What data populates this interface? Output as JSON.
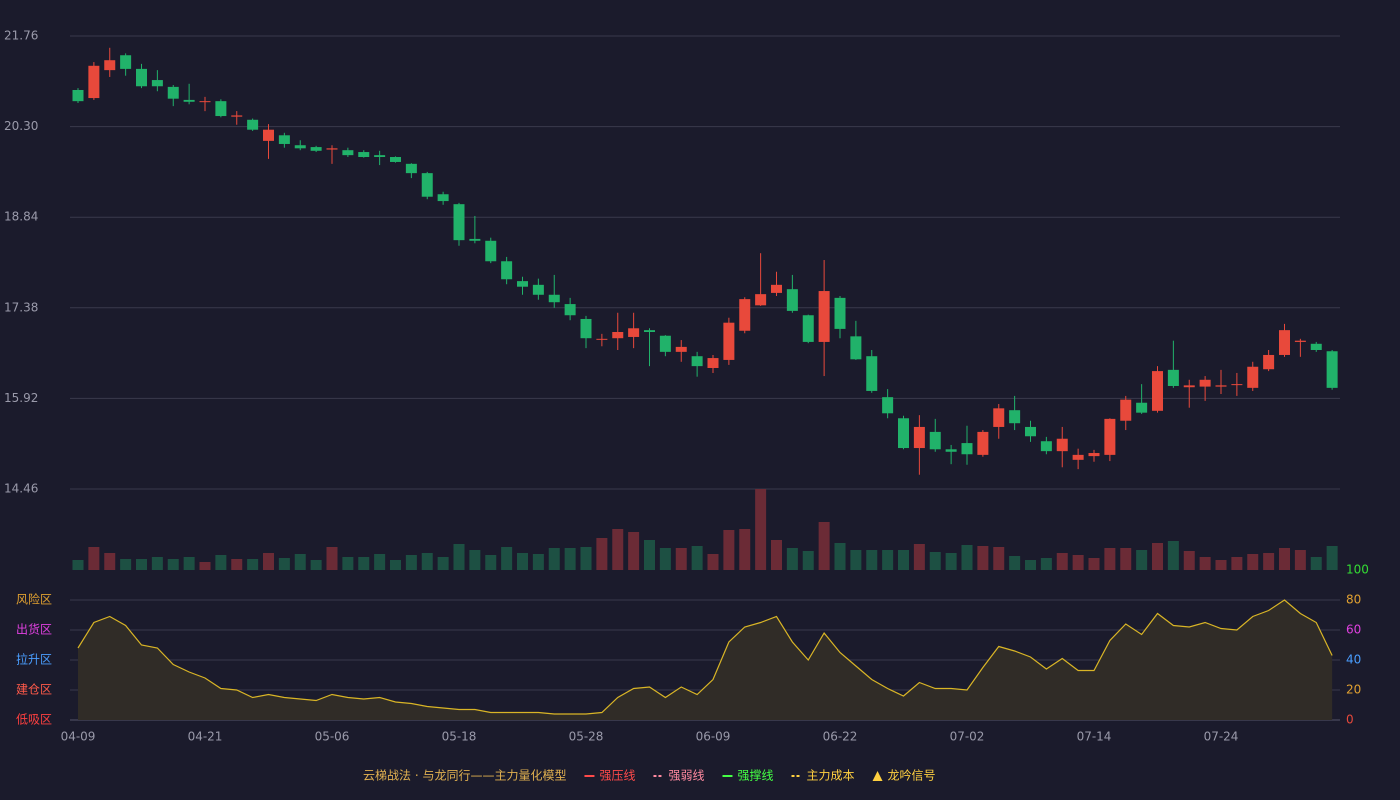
{
  "chart_data": {
    "type": "candlestick",
    "categories": [
      "04-09",
      null,
      null,
      null,
      null,
      null,
      null,
      null,
      "04-21",
      null,
      null,
      null,
      null,
      null,
      null,
      null,
      "05-06",
      null,
      null,
      null,
      null,
      null,
      null,
      null,
      "05-18",
      null,
      null,
      null,
      null,
      null,
      null,
      null,
      "05-28",
      null,
      null,
      null,
      null,
      null,
      null,
      null,
      "06-09",
      null,
      null,
      null,
      null,
      null,
      null,
      null,
      "06-22",
      null,
      null,
      null,
      null,
      null,
      null,
      null,
      "07-02",
      null,
      null,
      null,
      null,
      null,
      null,
      null,
      "07-14",
      null,
      null,
      null,
      null,
      null,
      null,
      null,
      "07-24",
      null,
      null,
      null,
      null,
      null,
      null,
      null
    ],
    "open": [
      20.89,
      20.76,
      21.21,
      21.45,
      21.23,
      21.05,
      20.94,
      20.73,
      20.7,
      20.71,
      20.46,
      20.41,
      20.07,
      20.16,
      20.0,
      19.97,
      19.93,
      19.92,
      19.89,
      19.84,
      19.81,
      19.7,
      19.55,
      19.21,
      19.05,
      18.49,
      18.46,
      18.13,
      17.81,
      17.75,
      17.59,
      17.44,
      17.2,
      16.87,
      16.89,
      16.91,
      17.02,
      16.93,
      16.67,
      16.6,
      16.41,
      16.54,
      17.01,
      17.42,
      17.62,
      17.68,
      17.26,
      16.83,
      17.54,
      16.92,
      16.6,
      15.94,
      15.6,
      15.12,
      15.38,
      15.1,
      15.2,
      15.01,
      15.46,
      15.73,
      15.46,
      15.23,
      15.07,
      14.93,
      14.99,
      15.01,
      15.56,
      15.85,
      15.72,
      16.38,
      16.1,
      16.11,
      16.11,
      16.14,
      16.09,
      16.39,
      16.62,
      16.83,
      16.8,
      16.68
    ],
    "close": [
      20.71,
      21.28,
      21.37,
      21.23,
      20.95,
      20.95,
      20.75,
      20.7,
      20.71,
      20.47,
      20.48,
      20.25,
      20.25,
      20.02,
      19.95,
      19.91,
      19.95,
      19.84,
      19.81,
      19.81,
      19.73,
      19.55,
      19.17,
      19.1,
      18.47,
      18.46,
      18.13,
      17.84,
      17.72,
      17.59,
      17.47,
      17.26,
      16.89,
      16.88,
      16.99,
      17.05,
      16.99,
      16.67,
      16.75,
      16.44,
      16.57,
      17.14,
      17.52,
      17.6,
      17.75,
      17.33,
      16.83,
      17.65,
      17.04,
      16.55,
      16.04,
      15.68,
      15.12,
      15.46,
      15.1,
      15.06,
      15.02,
      15.38,
      15.76,
      15.52,
      15.31,
      15.07,
      15.27,
      15.01,
      15.04,
      15.59,
      15.9,
      15.69,
      16.36,
      16.12,
      16.13,
      16.22,
      16.13,
      16.15,
      16.43,
      16.62,
      17.02,
      16.85,
      16.7,
      16.09
    ],
    "high": [
      20.92,
      21.34,
      21.57,
      21.48,
      21.31,
      21.21,
      20.97,
      20.99,
      20.78,
      20.74,
      20.55,
      20.43,
      20.34,
      20.2,
      20.08,
      19.99,
      20.0,
      19.96,
      19.92,
      19.91,
      19.82,
      19.71,
      19.57,
      19.25,
      19.07,
      18.86,
      18.51,
      18.2,
      17.88,
      17.85,
      17.91,
      17.54,
      17.25,
      16.96,
      17.3,
      17.3,
      17.05,
      16.94,
      16.86,
      16.67,
      16.62,
      17.22,
      17.55,
      18.26,
      17.96,
      17.91,
      17.27,
      18.15,
      17.57,
      17.17,
      16.7,
      16.07,
      15.64,
      15.65,
      15.59,
      15.17,
      15.48,
      15.41,
      15.83,
      15.96,
      15.56,
      15.3,
      15.46,
      15.11,
      15.09,
      15.6,
      15.96,
      16.15,
      16.44,
      16.85,
      16.22,
      16.28,
      16.38,
      16.33,
      16.51,
      16.7,
      17.12,
      16.88,
      16.83,
      16.7
    ],
    "low": [
      20.68,
      20.73,
      21.1,
      21.12,
      20.92,
      20.87,
      20.63,
      20.66,
      20.55,
      20.45,
      20.33,
      20.23,
      19.78,
      19.96,
      19.92,
      19.89,
      19.7,
      19.81,
      19.8,
      19.68,
      19.72,
      19.47,
      19.13,
      19.04,
      18.38,
      18.42,
      18.1,
      17.76,
      17.59,
      17.51,
      17.38,
      17.18,
      16.73,
      16.76,
      16.7,
      16.73,
      16.44,
      16.6,
      16.51,
      16.27,
      16.33,
      16.46,
      16.97,
      17.41,
      17.57,
      17.3,
      16.81,
      16.28,
      16.89,
      16.54,
      16.01,
      15.6,
      15.1,
      14.69,
      15.06,
      14.86,
      14.85,
      14.98,
      15.27,
      15.41,
      15.22,
      15.02,
      14.81,
      14.78,
      14.9,
      14.91,
      15.41,
      15.67,
      15.69,
      16.09,
      15.77,
      15.88,
      15.99,
      15.96,
      16.04,
      16.36,
      16.59,
      16.59,
      16.67,
      16.06
    ],
    "up_color": "#e8493b",
    "down_color": "#21b26a",
    "ylim": [
      14.46,
      21.76
    ],
    "yticks": [
      {
        "value": 14.46,
        "label": "14.46"
      },
      {
        "value": 15.92,
        "label": "15.92"
      },
      {
        "value": 17.38,
        "label": "17.38"
      },
      {
        "value": 18.84,
        "label": "18.84"
      },
      {
        "value": 20.3,
        "label": "20.30"
      },
      {
        "value": 21.76,
        "label": "21.76"
      }
    ],
    "grid": true,
    "volume": {
      "type": "bar",
      "up_color": "#6b2b36",
      "down_color": "#1d5043",
      "values": [
        10,
        23,
        17,
        11,
        11,
        13,
        11,
        13,
        8,
        15,
        11,
        11,
        17,
        12,
        16,
        10,
        23,
        13,
        13,
        16,
        10,
        15,
        17,
        13,
        26,
        20,
        15,
        23,
        17,
        16,
        22,
        22,
        23,
        32,
        41,
        38,
        30,
        22,
        22,
        24,
        16,
        40,
        41,
        81,
        30,
        22,
        19,
        48,
        27,
        20,
        20,
        20,
        20,
        26,
        18,
        17,
        25,
        24,
        23,
        14,
        10,
        12,
        17,
        15,
        12,
        22,
        22,
        20,
        27,
        29,
        19,
        13,
        10,
        13,
        16,
        17,
        22,
        20,
        13,
        24
      ]
    },
    "indicator": {
      "type": "area",
      "color": "#d9b526",
      "fill": "#302c27",
      "values": [
        48,
        65,
        69,
        63,
        50,
        48,
        37,
        32,
        28,
        21,
        20,
        15,
        17,
        15,
        14,
        13,
        17,
        15,
        14,
        15,
        12,
        11,
        9,
        8,
        7,
        7,
        5,
        5,
        5,
        5,
        4,
        4,
        4,
        5,
        15,
        21,
        22,
        15,
        22,
        17,
        27,
        52,
        62,
        65,
        69,
        52,
        40,
        58,
        45,
        36,
        27,
        21,
        16,
        25,
        21,
        21,
        20,
        35,
        49,
        46,
        42,
        34,
        41,
        33,
        33,
        53,
        64,
        57,
        71,
        63,
        62,
        65,
        61,
        60,
        69,
        73,
        80,
        71,
        65,
        43
      ],
      "ylim": [
        0,
        100
      ],
      "yticks": [
        0,
        20,
        40,
        60,
        80,
        100
      ],
      "ytick_colors": [
        "#e8493b",
        "#e0a030",
        "#4a9eff",
        "#e040e0",
        "#e0a030",
        "#33dd33"
      ],
      "zones": [
        {
          "value": 80,
          "label": "风险区",
          "color": "#e0a030"
        },
        {
          "value": 60,
          "label": "出货区",
          "color": "#e040e0"
        },
        {
          "value": 40,
          "label": "拉升区",
          "color": "#4a9eff"
        },
        {
          "value": 20,
          "label": "建仓区",
          "color": "#ff5a4a"
        },
        {
          "value": 0,
          "label": "低吸区",
          "color": "#ff4040"
        }
      ]
    },
    "legend": {
      "title": "云梯战法 · 与龙同行——主力量化模型",
      "title_color": "#e0b050",
      "items": [
        {
          "name": "强压线",
          "color": "#ff4a4a",
          "style": "line"
        },
        {
          "name": "强弱线",
          "color": "#ff8aa0",
          "style": "dashed"
        },
        {
          "name": "强撑线",
          "color": "#44ff44",
          "style": "line"
        },
        {
          "name": "主力成本",
          "color": "#ffd040",
          "style": "dashed"
        },
        {
          "name": "龙吟信号",
          "color": "#ffd040",
          "style": "triangle"
        }
      ]
    }
  }
}
